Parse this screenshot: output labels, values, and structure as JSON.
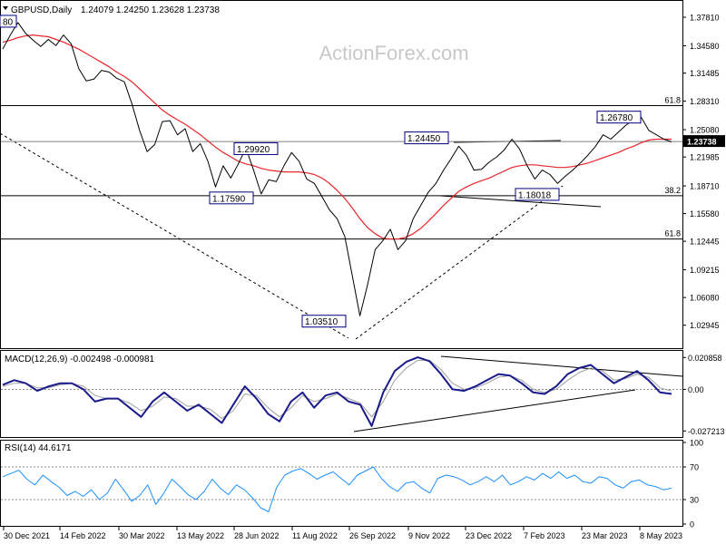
{
  "chart_data": [
    {
      "type": "line",
      "panel": "price",
      "title": "GBPUSD,Daily",
      "ohlc_text": "1.24079 1.24250 1.23628 1.23738",
      "watermark": "ActionForex.com",
      "ylim": [
        1.0055,
        1.3935
      ],
      "yticks": [
        1.3781,
        1.3458,
        1.31485,
        1.2831,
        1.2508,
        1.21985,
        1.1871,
        1.1558,
        1.12445,
        1.09215,
        1.0608,
        1.02945
      ],
      "ytick_labels": [
        "1.37810",
        "1.34580",
        "1.31485",
        "1.28310",
        "1.25080",
        "1.21985",
        "1.18710",
        "1.15580",
        "1.12445",
        "1.09215",
        "1.06080",
        "1.02945"
      ],
      "current_price": 1.23738,
      "current_price_label": "1.23738",
      "x_labels": [
        "30 Dec 2021",
        "14 Feb 2022",
        "30 Mar 2022",
        "13 May 2022",
        "28 Jun 2022",
        "11 Aug 2022",
        "26 Sep 2022",
        "9 Nov 2022",
        "23 Dec 2022",
        "7 Feb 2023",
        "23 Mar 2023",
        "8 May 2023"
      ],
      "levels": [
        {
          "label": "61.8",
          "price": 1.278
        },
        {
          "label": "38.2",
          "price": 1.176
        },
        {
          "label": "61.8",
          "price": 1.127
        }
      ],
      "annotations": [
        {
          "text": "80",
          "price": 1.373
        },
        {
          "text": "1.29920",
          "price": 1.2288
        },
        {
          "text": "1.17590",
          "price": 1.173
        },
        {
          "text": "1.24450",
          "price": 1.241
        },
        {
          "text": "1.26780",
          "price": 1.2645
        },
        {
          "text": "1.18018",
          "price": 1.177
        },
        {
          "text": "1.03510",
          "price": 1.0335
        }
      ],
      "series": [
        {
          "name": "",
          "color": "#000000",
          "values": [
            1.342,
            1.358,
            1.372,
            1.36,
            1.352,
            1.345,
            1.353,
            1.346,
            1.358,
            1.348,
            1.32,
            1.306,
            1.308,
            1.318,
            1.316,
            1.309,
            1.305,
            1.28,
            1.25,
            1.226,
            1.234,
            1.26,
            1.261,
            1.245,
            1.252,
            1.226,
            1.235,
            1.215,
            1.186,
            1.21,
            1.196,
            1.212,
            1.23,
            1.205,
            1.178,
            1.194,
            1.192,
            1.21,
            1.225,
            1.215,
            1.195,
            1.19,
            1.175,
            1.16,
            1.15,
            1.13,
            1.085,
            1.04,
            1.075,
            1.115,
            1.125,
            1.138,
            1.115,
            1.125,
            1.15,
            1.165,
            1.18,
            1.19,
            1.205,
            1.218,
            1.232,
            1.222,
            1.205,
            1.206,
            1.214,
            1.22,
            1.228,
            1.24,
            1.229,
            1.21,
            1.195,
            1.205,
            1.2,
            1.19,
            1.198,
            1.205,
            1.213,
            1.222,
            1.232,
            1.245,
            1.24,
            1.248,
            1.256,
            1.262,
            1.265,
            1.25,
            1.245,
            1.24,
            1.237
          ]
        },
        {
          "name": "",
          "color": "#e8262b",
          "values": [
            1.35,
            1.352,
            1.355,
            1.357,
            1.358,
            1.357,
            1.356,
            1.353,
            1.35,
            1.346,
            1.342,
            1.337,
            1.332,
            1.327,
            1.322,
            1.316,
            1.311,
            1.305,
            1.297,
            1.289,
            1.281,
            1.273,
            1.267,
            1.262,
            1.257,
            1.251,
            1.245,
            1.238,
            1.231,
            1.225,
            1.22,
            1.215,
            1.212,
            1.21,
            1.207,
            1.205,
            1.204,
            1.203,
            1.203,
            1.203,
            1.202,
            1.2,
            1.196,
            1.19,
            1.182,
            1.173,
            1.162,
            1.15,
            1.14,
            1.133,
            1.128,
            1.127,
            1.127,
            1.129,
            1.133,
            1.139,
            1.147,
            1.156,
            1.165,
            1.173,
            1.181,
            1.186,
            1.19,
            1.193,
            1.196,
            1.2,
            1.204,
            1.208,
            1.21,
            1.211,
            1.211,
            1.21,
            1.209,
            1.208,
            1.208,
            1.209,
            1.211,
            1.213,
            1.216,
            1.219,
            1.222,
            1.225,
            1.229,
            1.232,
            1.236,
            1.239,
            1.24,
            1.24,
            1.24
          ]
        }
      ]
    },
    {
      "type": "line",
      "panel": "macd",
      "title": "MACD(12,26,9) -0.002498 -0.000981",
      "ylim": [
        -0.03,
        0.024
      ],
      "yticks": [
        0.020858,
        0.0,
        -0.027213
      ],
      "ytick_labels": [
        "0.020858",
        "0.00",
        "-0.027213"
      ],
      "series": [
        {
          "name": "",
          "color": "#1a1a8c",
          "values": [
            0.003,
            0.006,
            0.004,
            -0.001,
            0.002,
            0.004,
            0.004,
            0.0,
            -0.008,
            -0.006,
            -0.006,
            -0.012,
            -0.018,
            -0.008,
            -0.002,
            -0.008,
            -0.014,
            -0.01,
            -0.016,
            -0.022,
            -0.01,
            0.002,
            -0.006,
            -0.016,
            -0.021,
            -0.008,
            -0.002,
            -0.012,
            -0.004,
            -0.002,
            -0.008,
            -0.01,
            -0.024,
            -0.002,
            0.012,
            0.018,
            0.021,
            0.0185,
            0.01,
            0.0,
            -0.001,
            0.002,
            0.006,
            0.01,
            0.009,
            0.004,
            -0.002,
            -0.003,
            0.002,
            0.01,
            0.014,
            0.016,
            0.01,
            0.004,
            0.008,
            0.012,
            0.006,
            -0.002,
            -0.003
          ]
        },
        {
          "name": "",
          "color": "#a0a0a0",
          "values": [
            0.002,
            0.004,
            0.004,
            0.001,
            0.001,
            0.003,
            0.004,
            0.002,
            -0.004,
            -0.006,
            -0.006,
            -0.009,
            -0.014,
            -0.011,
            -0.005,
            -0.006,
            -0.011,
            -0.011,
            -0.013,
            -0.019,
            -0.014,
            -0.003,
            -0.004,
            -0.012,
            -0.018,
            -0.012,
            -0.004,
            -0.008,
            -0.006,
            -0.003,
            -0.006,
            -0.009,
            -0.018,
            -0.008,
            0.006,
            0.014,
            0.019,
            0.019,
            0.013,
            0.004,
            0.0,
            0.001,
            0.004,
            0.008,
            0.009,
            0.006,
            0.0,
            -0.002,
            0.0,
            0.006,
            0.011,
            0.014,
            0.012,
            0.006,
            0.007,
            0.01,
            0.008,
            0.001,
            -0.001
          ]
        }
      ]
    },
    {
      "type": "line",
      "panel": "rsi",
      "title": "RSI(14) 44.6171",
      "ylim": [
        0,
        100
      ],
      "yticks": [
        100,
        70,
        30,
        0
      ],
      "ytick_labels": [
        "100",
        "70",
        "30",
        "0"
      ],
      "series": [
        {
          "name": "",
          "color": "#1e90ff",
          "values": [
            58,
            62,
            66,
            55,
            48,
            60,
            52,
            45,
            35,
            40,
            34,
            42,
            30,
            38,
            55,
            42,
            28,
            35,
            48,
            24,
            38,
            55,
            46,
            36,
            30,
            40,
            55,
            44,
            36,
            48,
            42,
            32,
            20,
            15,
            45,
            60,
            65,
            68,
            62,
            55,
            60,
            64,
            56,
            48,
            60,
            65,
            70,
            56,
            46,
            40,
            50,
            52,
            44,
            38,
            56,
            60,
            58,
            54,
            48,
            52,
            58,
            52,
            60,
            48,
            52,
            58,
            54,
            62,
            56,
            64,
            56,
            60,
            52,
            50,
            58,
            56,
            48,
            44,
            52,
            54,
            48,
            46,
            42,
            44
          ]
        }
      ]
    }
  ]
}
